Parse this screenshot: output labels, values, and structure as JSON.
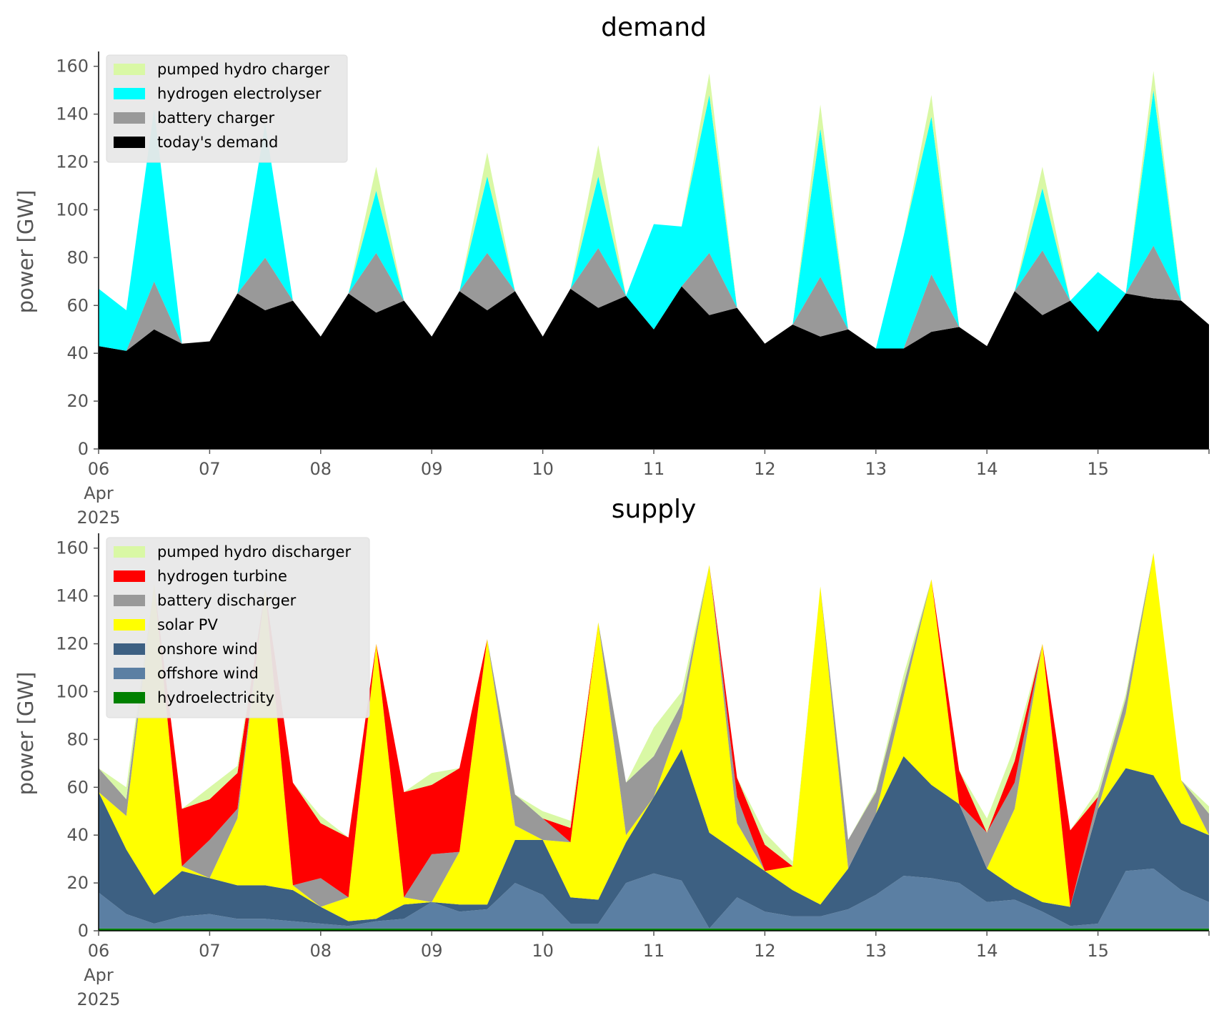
{
  "chart_data": [
    {
      "type": "area",
      "title": "demand",
      "ylabel": "power [GW]",
      "ylim": [
        0,
        165
      ],
      "yticks": [
        0,
        20,
        40,
        60,
        80,
        100,
        120,
        140,
        160
      ],
      "x_start": "2025-04-06",
      "x_end": "2025-04-16",
      "x_ticks": [
        {
          "at": "2025-04-06",
          "lines": [
            "06",
            "Apr",
            "2025"
          ]
        },
        {
          "at": "2025-04-07",
          "lines": [
            "07"
          ]
        },
        {
          "at": "2025-04-08",
          "lines": [
            "08"
          ]
        },
        {
          "at": "2025-04-09",
          "lines": [
            "09"
          ]
        },
        {
          "at": "2025-04-10",
          "lines": [
            "10"
          ]
        },
        {
          "at": "2025-04-11",
          "lines": [
            "11"
          ]
        },
        {
          "at": "2025-04-12",
          "lines": [
            "12"
          ]
        },
        {
          "at": "2025-04-13",
          "lines": [
            "13"
          ]
        },
        {
          "at": "2025-04-14",
          "lines": [
            "14"
          ]
        },
        {
          "at": "2025-04-15",
          "lines": [
            "15"
          ]
        }
      ],
      "grid": false,
      "legend_position": "top-left",
      "legend_order": [
        "pumped hydro charger",
        "hydrogen electrolyser",
        "battery charger",
        "today's demand"
      ],
      "x": [
        "2025-04-06 00:00",
        "2025-04-06 06:00",
        "2025-04-06 12:00",
        "2025-04-06 18:00",
        "2025-04-07 00:00",
        "2025-04-07 06:00",
        "2025-04-07 12:00",
        "2025-04-07 18:00",
        "2025-04-08 00:00",
        "2025-04-08 06:00",
        "2025-04-08 12:00",
        "2025-04-08 18:00",
        "2025-04-09 00:00",
        "2025-04-09 06:00",
        "2025-04-09 12:00",
        "2025-04-09 18:00",
        "2025-04-10 00:00",
        "2025-04-10 06:00",
        "2025-04-10 12:00",
        "2025-04-10 18:00",
        "2025-04-11 00:00",
        "2025-04-11 06:00",
        "2025-04-11 12:00",
        "2025-04-11 18:00",
        "2025-04-12 00:00",
        "2025-04-12 06:00",
        "2025-04-12 12:00",
        "2025-04-12 18:00",
        "2025-04-13 00:00",
        "2025-04-13 06:00",
        "2025-04-13 12:00",
        "2025-04-13 18:00",
        "2025-04-14 00:00",
        "2025-04-14 06:00",
        "2025-04-14 12:00",
        "2025-04-14 18:00",
        "2025-04-15 00:00",
        "2025-04-15 06:00",
        "2025-04-15 12:00",
        "2025-04-15 18:00",
        "2025-04-16 00:00"
      ],
      "series": [
        {
          "name": "today's demand",
          "color": "#000000",
          "values": [
            43,
            41,
            50,
            44,
            45,
            65,
            58,
            62,
            47,
            65,
            57,
            62,
            47,
            66,
            58,
            66,
            47,
            67,
            59,
            64,
            50,
            68,
            56,
            59,
            44,
            52,
            47,
            50,
            42,
            42,
            49,
            51,
            43,
            66,
            56,
            62,
            49,
            65,
            63,
            62,
            52
          ]
        },
        {
          "name": "battery charger",
          "color": "#999999",
          "values": [
            0,
            0,
            20,
            0,
            0,
            0,
            22,
            0,
            0,
            0,
            25,
            0,
            0,
            0,
            24,
            0,
            0,
            0,
            25,
            0,
            0,
            0,
            26,
            0,
            0,
            0,
            25,
            0,
            0,
            0,
            24,
            0,
            0,
            0,
            27,
            0,
            0,
            0,
            22,
            0,
            0
          ]
        },
        {
          "name": "hydrogen electrolyser",
          "color": "#00ffff",
          "values": [
            24,
            17,
            72,
            0,
            0,
            0,
            56,
            0,
            0,
            0,
            26,
            0,
            0,
            0,
            32,
            0,
            0,
            0,
            30,
            0,
            44,
            25,
            66,
            0,
            0,
            0,
            62,
            0,
            0,
            47,
            66,
            0,
            0,
            0,
            26,
            0,
            25,
            0,
            65,
            0,
            0
          ]
        },
        {
          "name": "pumped hydro charger",
          "color": "#d9f8a5",
          "values": [
            0,
            0,
            0,
            0,
            0,
            0,
            0,
            0,
            0,
            0,
            10,
            0,
            0,
            0,
            10,
            0,
            0,
            0,
            13,
            0,
            0,
            0,
            9,
            0,
            0,
            0,
            10,
            0,
            0,
            0,
            9,
            0,
            0,
            0,
            9,
            0,
            0,
            0,
            8,
            0,
            0
          ]
        }
      ]
    },
    {
      "type": "area",
      "title": "supply",
      "ylabel": "power [GW]",
      "ylim": [
        0,
        165
      ],
      "yticks": [
        0,
        20,
        40,
        60,
        80,
        100,
        120,
        140,
        160
      ],
      "x_start": "2025-04-06",
      "x_end": "2025-04-16",
      "x_ticks": [
        {
          "at": "2025-04-06",
          "lines": [
            "06",
            "Apr",
            "2025"
          ]
        },
        {
          "at": "2025-04-07",
          "lines": [
            "07"
          ]
        },
        {
          "at": "2025-04-08",
          "lines": [
            "08"
          ]
        },
        {
          "at": "2025-04-09",
          "lines": [
            "09"
          ]
        },
        {
          "at": "2025-04-10",
          "lines": [
            "10"
          ]
        },
        {
          "at": "2025-04-11",
          "lines": [
            "11"
          ]
        },
        {
          "at": "2025-04-12",
          "lines": [
            "12"
          ]
        },
        {
          "at": "2025-04-13",
          "lines": [
            "13"
          ]
        },
        {
          "at": "2025-04-14",
          "lines": [
            "14"
          ]
        },
        {
          "at": "2025-04-15",
          "lines": [
            "15"
          ]
        }
      ],
      "grid": false,
      "legend_position": "top-left",
      "legend_order": [
        "pumped hydro discharger",
        "hydrogen turbine",
        "battery discharger",
        "solar PV",
        "onshore wind",
        "offshore wind",
        "hydroelectricity"
      ],
      "x": [
        "2025-04-06 00:00",
        "2025-04-06 06:00",
        "2025-04-06 12:00",
        "2025-04-06 18:00",
        "2025-04-07 00:00",
        "2025-04-07 06:00",
        "2025-04-07 12:00",
        "2025-04-07 18:00",
        "2025-04-08 00:00",
        "2025-04-08 06:00",
        "2025-04-08 12:00",
        "2025-04-08 18:00",
        "2025-04-09 00:00",
        "2025-04-09 06:00",
        "2025-04-09 12:00",
        "2025-04-09 18:00",
        "2025-04-10 00:00",
        "2025-04-10 06:00",
        "2025-04-10 12:00",
        "2025-04-10 18:00",
        "2025-04-11 00:00",
        "2025-04-11 06:00",
        "2025-04-11 12:00",
        "2025-04-11 18:00",
        "2025-04-12 00:00",
        "2025-04-12 06:00",
        "2025-04-12 12:00",
        "2025-04-12 18:00",
        "2025-04-13 00:00",
        "2025-04-13 06:00",
        "2025-04-13 12:00",
        "2025-04-13 18:00",
        "2025-04-14 00:00",
        "2025-04-14 06:00",
        "2025-04-14 12:00",
        "2025-04-14 18:00",
        "2025-04-15 00:00",
        "2025-04-15 06:00",
        "2025-04-15 12:00",
        "2025-04-15 18:00",
        "2025-04-16 00:00"
      ],
      "series": [
        {
          "name": "hydroelectricity",
          "color": "#008000",
          "values": [
            1,
            1,
            1,
            1,
            1,
            1,
            1,
            1,
            1,
            1,
            1,
            1,
            1,
            1,
            1,
            1,
            1,
            1,
            1,
            1,
            1,
            1,
            1,
            1,
            1,
            1,
            1,
            1,
            1,
            1,
            1,
            1,
            1,
            1,
            1,
            1,
            1,
            1,
            1,
            1,
            1
          ]
        },
        {
          "name": "offshore wind",
          "color": "#5b7fa3",
          "values": [
            15,
            6,
            2,
            5,
            6,
            4,
            4,
            3,
            2,
            1,
            3,
            4,
            11,
            7,
            8,
            19,
            14,
            2,
            2,
            19,
            23,
            20,
            0,
            13,
            7,
            5,
            5,
            8,
            14,
            22,
            21,
            19,
            11,
            12,
            7,
            1,
            2,
            24,
            25,
            16,
            11
          ]
        },
        {
          "name": "onshore wind",
          "color": "#3d6082",
          "values": [
            42,
            27,
            12,
            19,
            15,
            14,
            14,
            13,
            7,
            2,
            1,
            6,
            0,
            3,
            2,
            18,
            23,
            11,
            10,
            17,
            32,
            55,
            40,
            19,
            17,
            11,
            5,
            17,
            34,
            50,
            39,
            33,
            14,
            5,
            4,
            8,
            48,
            43,
            39,
            28,
            28
          ]
        },
        {
          "name": "solar PV",
          "color": "#ffff00",
          "values": [
            0,
            14,
            130,
            2,
            0,
            28,
            124,
            2,
            0,
            10,
            115,
            3,
            0,
            22,
            111,
            6,
            0,
            23,
            116,
            3,
            0,
            13,
            112,
            12,
            0,
            10,
            133,
            0,
            0,
            25,
            86,
            0,
            0,
            33,
            108,
            0,
            0,
            23,
            93,
            18,
            0
          ]
        },
        {
          "name": "battery discharger",
          "color": "#999999",
          "values": [
            10,
            7,
            0,
            0,
            16,
            4,
            0,
            0,
            12,
            0,
            0,
            0,
            20,
            0,
            0,
            13,
            9,
            0,
            0,
            22,
            17,
            6,
            0,
            11,
            0,
            0,
            0,
            12,
            9,
            5,
            0,
            0,
            15,
            11,
            0,
            0,
            5,
            6,
            0,
            0,
            9
          ]
        },
        {
          "name": "hydrogen turbine",
          "color": "#ff0000",
          "values": [
            0,
            0,
            0,
            24,
            17,
            15,
            0,
            43,
            23,
            25,
            0,
            44,
            29,
            35,
            0,
            0,
            0,
            6,
            0,
            0,
            0,
            0,
            0,
            8,
            11,
            0,
            0,
            0,
            0,
            0,
            0,
            14,
            0,
            9,
            0,
            32,
            0,
            0,
            0,
            0,
            0
          ]
        },
        {
          "name": "pumped hydro discharger",
          "color": "#d9f8a5",
          "values": [
            0,
            5,
            0,
            0,
            5,
            3,
            0,
            0,
            3,
            0,
            0,
            0,
            5,
            0,
            0,
            0,
            3,
            3,
            0,
            0,
            12,
            5,
            0,
            0,
            5,
            2,
            0,
            0,
            1,
            4,
            0,
            0,
            6,
            6,
            0,
            0,
            3,
            2,
            0,
            0,
            3
          ]
        }
      ]
    }
  ]
}
